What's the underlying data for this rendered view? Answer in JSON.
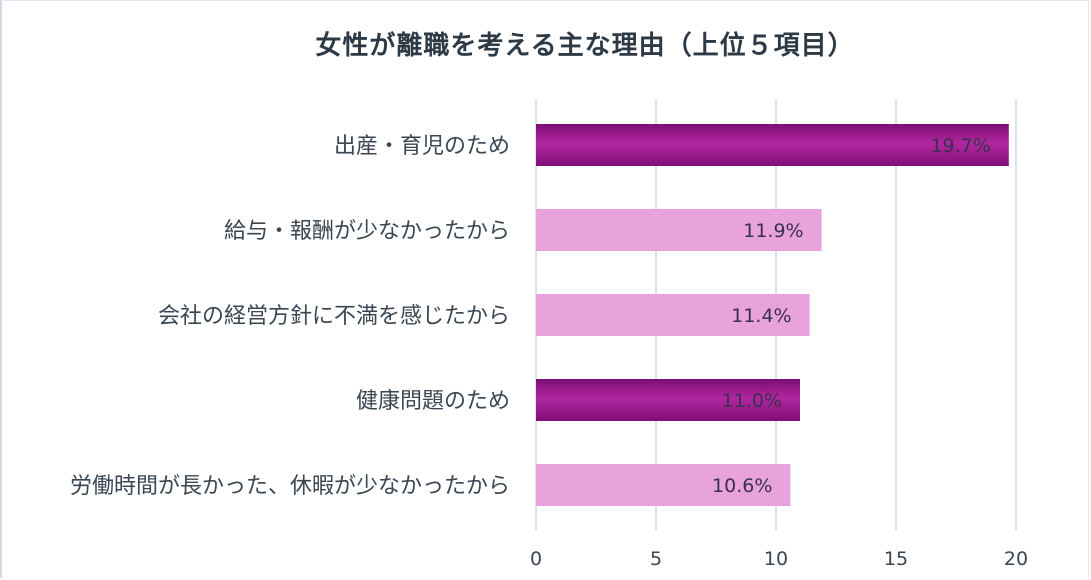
{
  "chart_data": {
    "type": "bar",
    "orientation": "horizontal",
    "title": "女性が離職を考える主な理由（上位５項目）",
    "categories": [
      "出産・育児のため",
      "給与・報酬が少なかったから",
      "会社の経営方針に不満を感じたから",
      "健康問題のため",
      "労働時間が長かった、休暇が少なかったから"
    ],
    "values": [
      19.7,
      11.9,
      11.4,
      11.0,
      10.6
    ],
    "value_labels": [
      "19.7%",
      "11.9%",
      "11.4%",
      "11.0%",
      "10.6%"
    ],
    "xlim": [
      0,
      20
    ],
    "xticks": [
      0,
      5,
      10,
      15,
      20
    ],
    "xtick_labels": [
      "0",
      "5",
      "10",
      "15",
      "20"
    ],
    "grid": true,
    "legend": "none",
    "colors": {
      "dark_bar": "#9a1a8e",
      "light_bar": "#e8a2dc",
      "grid": "#c9d7e3"
    },
    "bar_styles": [
      "dark",
      "light",
      "light",
      "dark",
      "light"
    ]
  }
}
